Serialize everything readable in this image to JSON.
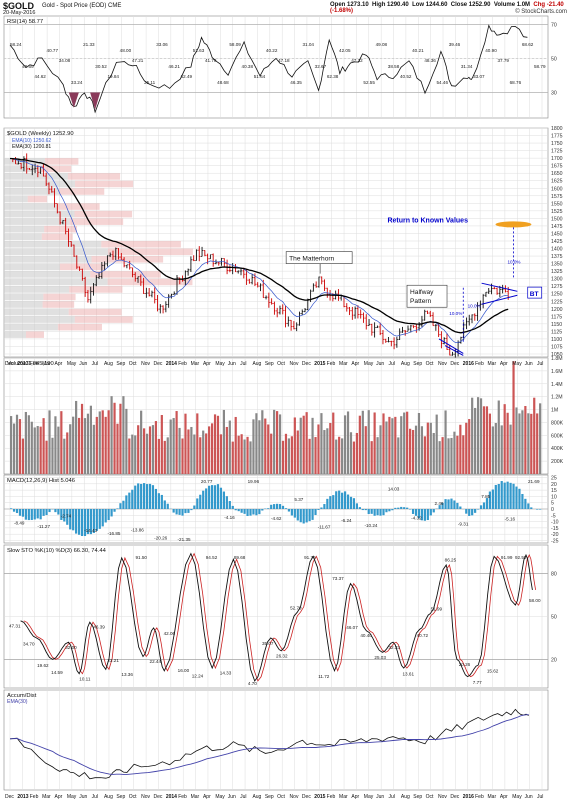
{
  "header": {
    "symbol": "$GOLD",
    "name": "Gold - Spot Price (EOD)  CME",
    "date": "20-May-2016",
    "open": "Open 1273.10",
    "high": "High 1290.40",
    "low": "Low 1244.60",
    "close": "Close 1252.90",
    "volume": "Volume 1.0M",
    "change": "Chg -21.40 (-1.68%)",
    "credit": "© StockCharts.com"
  },
  "colors": {
    "up": "#111111",
    "down": "#cc0000",
    "ema": "#000000",
    "ema_fast": "#3355cc",
    "annot": "#0000cc",
    "target": "#f0a020",
    "macd_hist": "#3399cc",
    "ad_ma": "#4444aa"
  },
  "x_axis": {
    "labels": [
      "Dec",
      "2013",
      "Feb",
      "Mar",
      "Apr",
      "May",
      "Jun",
      "Jul",
      "Aug",
      "Sep",
      "Oct",
      "Nov",
      "Dec",
      "2014",
      "Feb",
      "Mar",
      "Apr",
      "May",
      "Jun",
      "Jul",
      "Aug",
      "Sep",
      "Oct",
      "Nov",
      "Dec",
      "2015",
      "Feb",
      "Mar",
      "Apr",
      "May",
      "Jun",
      "Jul",
      "Aug",
      "Sep",
      "Oct",
      "Nov",
      "Dec",
      "2016",
      "Feb",
      "Mar",
      "Apr",
      "May",
      "Jun",
      "Jul"
    ]
  },
  "chart_data": [
    {
      "type": "line",
      "title": "RSI(14) 58.77",
      "ylim": [
        15,
        75
      ],
      "y_ticks": [
        30,
        50,
        70
      ],
      "data_labels": [
        "58.24",
        "49.69",
        "44.62",
        "40.77",
        "34.08",
        "33.24",
        "21.33",
        "30.52",
        "19.84",
        "48.00",
        "47.21",
        "35.11",
        "33.06",
        "46.21",
        "62.49",
        "51.63",
        "41.79",
        "48.68",
        "58.09",
        "40.38",
        "51.64",
        "40.22",
        "47.18",
        "46.35",
        "31.04",
        "32.67",
        "62.38",
        "42.05",
        "47.32",
        "52.55",
        "49.08",
        "38.58",
        "40.52",
        "40.21",
        "48.36",
        "54.46",
        "39.46",
        "31.34",
        "33.07",
        "40.90",
        "37.79",
        "68.76",
        "68.62",
        "58.79"
      ]
    },
    {
      "type": "bar",
      "title": "$GOLD (Weekly) 1252.90",
      "legend": [
        "EMA(10) 1250.62",
        "EMA(30) 1200.81"
      ],
      "ylim": [
        1040,
        1800
      ],
      "y_ticks": [
        1050,
        1075,
        1100,
        1125,
        1150,
        1175,
        1200,
        1225,
        1250,
        1275,
        1300,
        1325,
        1350,
        1375,
        1400,
        1425,
        1450,
        1475,
        1500,
        1525,
        1550,
        1575,
        1600,
        1625,
        1650,
        1675,
        1700,
        1725,
        1750,
        1775,
        1800
      ],
      "y_tick_labels": [
        "1050",
        "1075",
        "1100",
        "1125",
        "1150",
        "1175",
        "1200",
        "1225",
        "1250",
        "1275",
        "1300",
        "1325",
        "1350",
        "1375",
        "1400",
        "1425",
        "1450",
        "1475",
        "1500",
        "1525",
        "1550",
        "1575",
        "1600",
        "1625",
        "1650",
        "1675",
        "1700",
        "1725",
        "1750",
        "1775",
        "1800"
      ],
      "key_points": [
        {
          "date": "2012-12",
          "close": 1690
        },
        {
          "date": "2013-02",
          "close": 1670
        },
        {
          "date": "2013-04",
          "close": 1470
        },
        {
          "date": "2013-06",
          "close": 1230
        },
        {
          "date": "2013-08",
          "close": 1395
        },
        {
          "date": "2013-12",
          "close": 1200
        },
        {
          "date": "2014-03",
          "close": 1385
        },
        {
          "date": "2014-07",
          "close": 1320
        },
        {
          "date": "2014-11",
          "close": 1140
        },
        {
          "date": "2015-01",
          "close": 1290
        },
        {
          "date": "2015-07",
          "close": 1085
        },
        {
          "date": "2015-10",
          "close": 1180
        },
        {
          "date": "2015-12",
          "close": 1050
        },
        {
          "date": "2016-03",
          "close": 1270
        },
        {
          "date": "2016-05",
          "close": 1252.9
        }
      ],
      "annotations": [
        "The Matterhorn",
        "Return to Known Values",
        "Halfway Pattern",
        "BT",
        "10.0%",
        "10.0%",
        "10.0%"
      ]
    },
    {
      "type": "bar",
      "title": "Volume 1,045,190",
      "ylim": [
        0,
        1800
      ],
      "y_ticks": [
        200,
        400,
        600,
        800,
        1000,
        1200,
        1400,
        1600,
        1800
      ],
      "y_tick_labels": [
        "200K",
        "400K",
        "600K",
        "800K",
        "1M",
        "1.2M",
        "1.4M",
        "1.6M",
        "1.8M"
      ]
    },
    {
      "type": "bar",
      "title": "MACD(12,26,9)  Hist 5.046",
      "ylim": [
        -27,
        27
      ],
      "y_ticks": [
        -25,
        -20,
        -15,
        -10,
        -5,
        0,
        5,
        10,
        15,
        20,
        25
      ],
      "data_labels": [
        "-8.49",
        "-11.27",
        "-2.74",
        "-14.43",
        "-16.85",
        "-13.86",
        "-20.26",
        "-21.35",
        "20.77",
        "-4.16",
        "19.96",
        "-4.62",
        "5.37",
        "-11.67",
        "-6.24",
        "-10.24",
        "14.03",
        "-4.32",
        "2.46",
        "-9.31",
        "7.85",
        "-5.16",
        "21.69"
      ]
    },
    {
      "type": "line",
      "title": "Slow STO %K(10) %D(3) 66.30, 74.44",
      "ylim": [
        0,
        100
      ],
      "y_ticks": [
        20,
        50,
        80
      ],
      "data_labels": [
        "47.31",
        "34.70",
        "19.62",
        "14.59",
        "32.00",
        "10.11",
        "46.39",
        "23.21",
        "13.36",
        "91.50",
        "22.44",
        "42.06",
        "16.00",
        "12.24",
        "94.52",
        "14.33",
        "89.68",
        "4.70",
        "35.07",
        "26.32",
        "52.79",
        "91.76",
        "11.72",
        "73.37",
        "46.07",
        "40.40",
        "25.03",
        "32.33",
        "13.61",
        "40.72",
        "51.99",
        "86.25",
        "20.26",
        "7.77",
        "15.62",
        "91.99",
        "92.58",
        "58.00"
      ]
    },
    {
      "type": "line",
      "title": "Accum/Dist",
      "legend": [
        "EMA(30)"
      ]
    }
  ]
}
